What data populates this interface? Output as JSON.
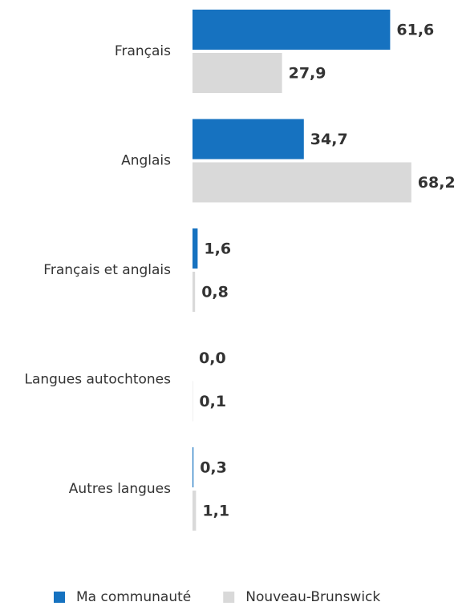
{
  "chart_data": {
    "type": "hbar",
    "categories": [
      "Français",
      "Anglais",
      "Français et anglais",
      "Langues autochtones",
      "Autres langues"
    ],
    "series": [
      {
        "name": "Ma communauté",
        "color": "#1672c0",
        "values": [
          61.6,
          34.7,
          1.6,
          0.0,
          0.3
        ],
        "value_labels": [
          "61,6",
          "34,7",
          "1,6",
          "0,0",
          "0,3"
        ]
      },
      {
        "name": "Nouveau-Brunswick",
        "color": "#d9d9d9",
        "values": [
          27.9,
          68.2,
          0.8,
          0.1,
          1.1
        ],
        "value_labels": [
          "27,9",
          "68,2",
          "0,8",
          "0,1",
          "1,1"
        ]
      }
    ]
  }
}
